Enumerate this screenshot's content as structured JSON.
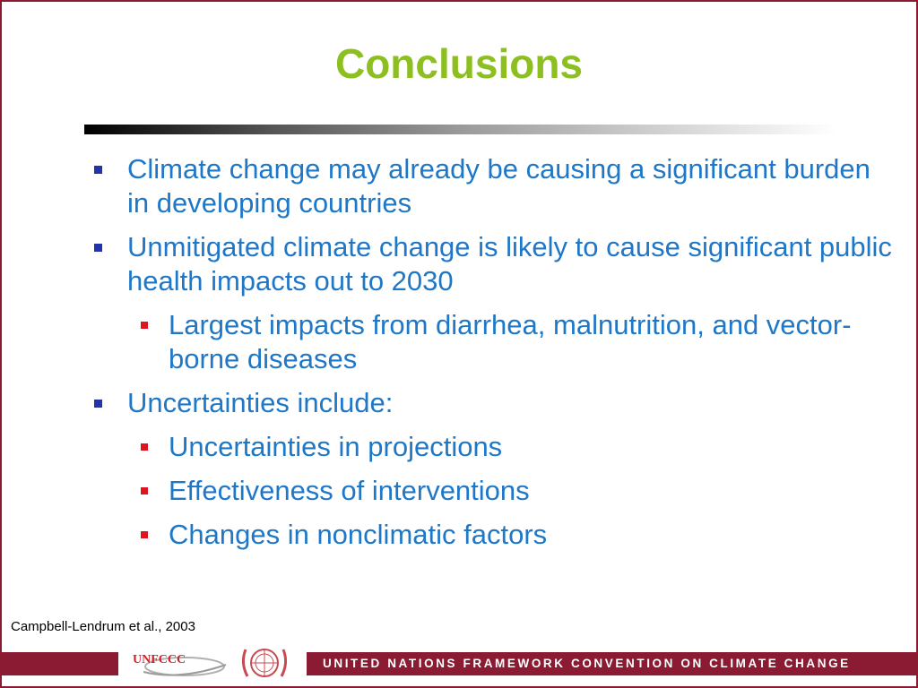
{
  "slide": {
    "title": "Conclusions",
    "bullets": [
      "Climate change may already be causing a significant burden in developing countries",
      "Unmitigated climate change is likely to cause significant public health impacts out to 2030",
      "Largest impacts from diarrhea, malnutrition, and vector-borne diseases",
      "Uncertainties include:",
      "Uncertainties in projections",
      "Effectiveness of interventions",
      "Changes in nonclimatic factors"
    ],
    "citation": "Campbell-Lendrum et al., 2003"
  },
  "footer": {
    "logo_text": "UNFCCC",
    "org_text": "UNITED NATIONS FRAMEWORK CONVENTION ON CLIMATE CHANGE"
  },
  "colors": {
    "title": "#8cbf1f",
    "body_text": "#1f77c8",
    "level1_bullet": "#2234a8",
    "level2_bullet": "#e0141e",
    "frame": "#8b1a33"
  },
  "icons": [
    "unfccc-logo",
    "un-emblem"
  ]
}
